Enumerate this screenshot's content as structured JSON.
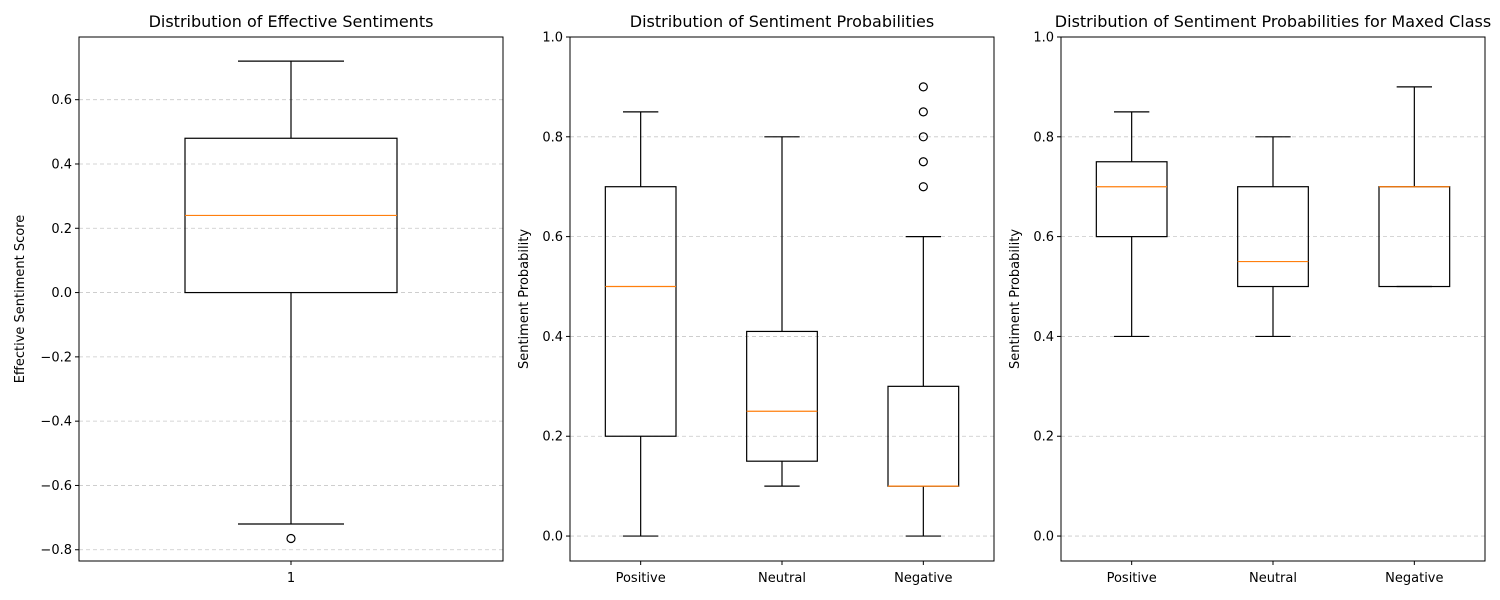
{
  "chart_data": [
    {
      "type": "box",
      "title": "Distribution of Effective Sentiments",
      "xlabel": "",
      "ylabel": "Effective Sentiment Score",
      "ylim": [
        -0.835,
        0.795
      ],
      "yticks": [
        -0.8,
        -0.6,
        -0.4,
        -0.2,
        0.0,
        0.2,
        0.4,
        0.6
      ],
      "ytick_labels": [
        "−0.8",
        "−0.6",
        "−0.4",
        "−0.2",
        "0.0",
        "0.2",
        "0.4",
        "0.6"
      ],
      "grid": "y-dashed",
      "categories": [
        "1"
      ],
      "boxes": [
        {
          "whisker_low": -0.72,
          "q1": 0.0,
          "median": 0.24,
          "q3": 0.48,
          "whisker_high": 0.72,
          "outliers": [
            -0.765
          ]
        }
      ]
    },
    {
      "type": "box",
      "title": "Distribution of Sentiment Probabilities",
      "xlabel": "",
      "ylabel": "Sentiment Probability",
      "ylim": [
        -0.05,
        1.0
      ],
      "yticks": [
        0.0,
        0.2,
        0.4,
        0.6,
        0.8,
        1.0
      ],
      "ytick_labels": [
        "0.0",
        "0.2",
        "0.4",
        "0.6",
        "0.8",
        "1.0"
      ],
      "grid": "y-dashed",
      "categories": [
        "Positive",
        "Neutral",
        "Negative"
      ],
      "boxes": [
        {
          "whisker_low": 0.0,
          "q1": 0.2,
          "median": 0.5,
          "q3": 0.7,
          "whisker_high": 0.85,
          "outliers": []
        },
        {
          "whisker_low": 0.1,
          "q1": 0.15,
          "median": 0.25,
          "q3": 0.41,
          "whisker_high": 0.8,
          "outliers": []
        },
        {
          "whisker_low": 0.0,
          "q1": 0.1,
          "median": 0.1,
          "q3": 0.3,
          "whisker_high": 0.6,
          "outliers": [
            0.7,
            0.75,
            0.8,
            0.85,
            0.9
          ]
        }
      ]
    },
    {
      "type": "box",
      "title": "Distribution of Sentiment Probabilities for Maxed Class",
      "xlabel": "",
      "ylabel": "Sentiment Probability",
      "ylim": [
        -0.05,
        1.0
      ],
      "yticks": [
        0.0,
        0.2,
        0.4,
        0.6,
        0.8,
        1.0
      ],
      "ytick_labels": [
        "0.0",
        "0.2",
        "0.4",
        "0.6",
        "0.8",
        "1.0"
      ],
      "grid": "y-dashed",
      "categories": [
        "Positive",
        "Neutral",
        "Negative"
      ],
      "boxes": [
        {
          "whisker_low": 0.4,
          "q1": 0.6,
          "median": 0.7,
          "q3": 0.75,
          "whisker_high": 0.85,
          "outliers": []
        },
        {
          "whisker_low": 0.4,
          "q1": 0.5,
          "median": 0.55,
          "q3": 0.7,
          "whisker_high": 0.8,
          "outliers": []
        },
        {
          "whisker_low": 0.5,
          "q1": 0.5,
          "median": 0.7,
          "q3": 0.7,
          "whisker_high": 0.9,
          "outliers": []
        }
      ]
    }
  ],
  "colors": {
    "box": "#000000",
    "median": "#ff7f0e",
    "grid": "#c8c8c8",
    "background": "#ffffff"
  }
}
